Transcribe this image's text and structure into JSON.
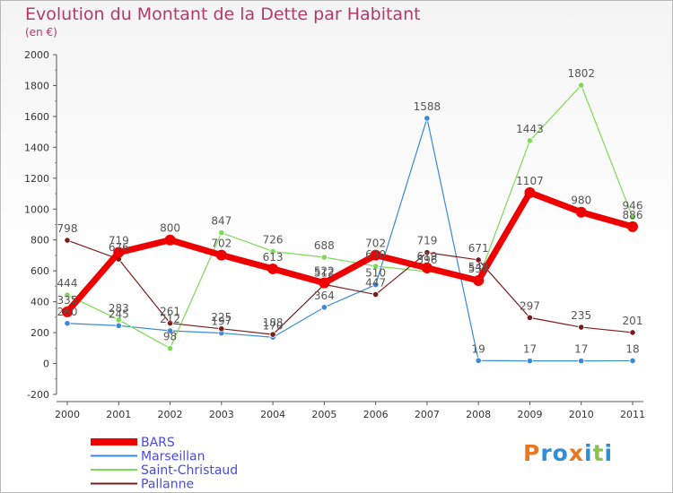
{
  "title": "Evolution du Montant de la Dette par Habitant",
  "subtitle": "(en €)",
  "logo": {
    "text": "Proxiti",
    "letter_colors": [
      "#e87722",
      "#2f8fd6",
      "#2f8fd6",
      "#e87722",
      "#2f8fd6",
      "#8bc34a",
      "#2f8fd6"
    ]
  },
  "chart_data": {
    "type": "line",
    "title": "Evolution du Montant de la Dette par Habitant",
    "ylabel": "(en €)",
    "xlabel": "",
    "ylim": [
      -200,
      2000
    ],
    "yticks": [
      -200,
      0,
      200,
      400,
      600,
      800,
      1000,
      1200,
      1400,
      1600,
      1800,
      2000
    ],
    "grid": false,
    "legend_position": "bottom-left",
    "x": [
      "2000",
      "2001",
      "2002",
      "2003",
      "2004",
      "2005",
      "2006",
      "2007",
      "2008",
      "2009",
      "2010",
      "2011"
    ],
    "series": [
      {
        "name": "BARS",
        "color": "#ee0000",
        "values": [
          335,
          719,
          800,
          702,
          613,
          522,
          702,
          619,
          537,
          1107,
          980,
          886
        ]
      },
      {
        "name": "Marseillan",
        "color": "#3a8ad8",
        "values": [
          260,
          245,
          212,
          197,
          170,
          364,
          510,
          1588,
          19,
          17,
          17,
          18
        ]
      },
      {
        "name": "Saint-Christaud",
        "color": "#7ed957",
        "values": [
          444,
          283,
          98,
          847,
          726,
          688,
          630,
          596,
          548,
          1443,
          1802,
          946
        ]
      },
      {
        "name": "Pallanne",
        "color": "#7a1c1c",
        "values": [
          798,
          676,
          261,
          225,
          188,
          512,
          447,
          719,
          671,
          297,
          235,
          201
        ]
      }
    ],
    "labels": {
      "BARS": [
        "335",
        "719",
        "800",
        "702",
        "613",
        "522",
        "702",
        "619",
        "537",
        "1107",
        "980",
        "886"
      ],
      "Marseillan": [
        "260",
        "245",
        "212",
        "197",
        "170",
        "364",
        "510",
        "1588",
        "19",
        "17",
        "17",
        "18"
      ],
      "Saint-Christaud": [
        "444",
        "283",
        "98",
        "847",
        "726",
        "688",
        "630",
        "596",
        "548",
        "1443",
        "1802",
        "946"
      ],
      "Pallanne": [
        "798",
        "676",
        "261",
        "225",
        "188",
        "512",
        "447",
        "719",
        "671",
        "297",
        "235",
        "201"
      ]
    }
  }
}
